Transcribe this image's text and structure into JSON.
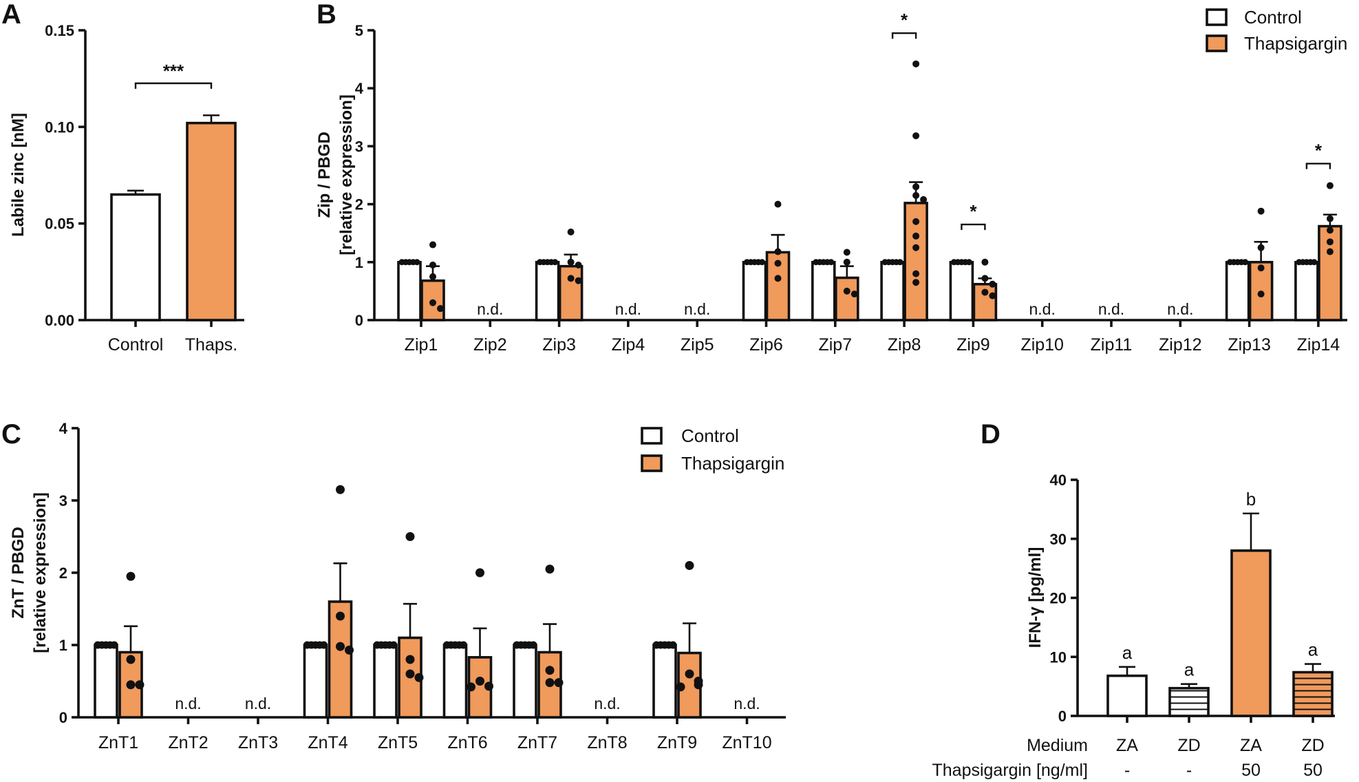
{
  "colors": {
    "control": "#ffffff",
    "thapsigargin": "#f09a5c",
    "stroke": "#111111"
  },
  "chart_data": [
    {
      "panel": "A",
      "type": "bar",
      "ylabel": "Labile zinc [nM]",
      "yticks": [
        "0.00",
        "0.05",
        "0.10",
        "0.15"
      ],
      "ylim": [
        0,
        0.15
      ],
      "categories": [
        "Control",
        "Thaps."
      ],
      "values": [
        0.065,
        0.102
      ],
      "errors": [
        0.002,
        0.004
      ],
      "fills": [
        "control",
        "thapsigargin"
      ],
      "significance": "***"
    },
    {
      "panel": "B",
      "type": "bar",
      "ylabel_line1": "Zip / PBGD",
      "ylabel_line2": "[relative expression]",
      "yticks": [
        "0",
        "1",
        "2",
        "3",
        "4",
        "5"
      ],
      "ylim": [
        0,
        5
      ],
      "legend": [
        "Control",
        "Thapsigargin"
      ],
      "nd_label": "n.d.",
      "sig_label": "*",
      "groups": [
        {
          "name": "Zip1",
          "control": 1,
          "thaps": 0.68,
          "err": 0.25,
          "points": [
            1.3,
            0.95,
            0.75,
            0.3,
            0.2
          ]
        },
        {
          "name": "Zip2",
          "nd": true
        },
        {
          "name": "Zip3",
          "control": 1,
          "thaps": 0.93,
          "err": 0.2,
          "points": [
            1.52,
            1.0,
            0.95,
            0.72,
            0.68
          ]
        },
        {
          "name": "Zip4",
          "nd": true
        },
        {
          "name": "Zip5",
          "nd": true
        },
        {
          "name": "Zip6",
          "control": 1,
          "thaps": 1.17,
          "err": 0.3,
          "points": [
            2.0,
            1.18,
            0.98,
            0.72
          ]
        },
        {
          "name": "Zip7",
          "control": 1,
          "thaps": 0.73,
          "err": 0.2,
          "points": [
            1.17,
            1.0,
            0.5,
            0.45
          ]
        },
        {
          "name": "Zip8",
          "control": 1,
          "thaps": 2.02,
          "err": 0.36,
          "points": [
            4.42,
            3.18,
            2.3,
            2.15,
            2.08,
            1.7,
            1.45,
            1.25,
            0.8,
            0.65
          ],
          "sig": true,
          "sigY": 4.95
        },
        {
          "name": "Zip9",
          "control": 1,
          "thaps": 0.62,
          "err": 0.1,
          "points": [
            1.0,
            0.72,
            0.62,
            0.48,
            0.42
          ],
          "sig": true,
          "sigY": 1.65
        },
        {
          "name": "Zip10",
          "nd": true
        },
        {
          "name": "Zip11",
          "nd": true
        },
        {
          "name": "Zip12",
          "nd": true
        },
        {
          "name": "Zip13",
          "control": 1,
          "thaps": 1.0,
          "err": 0.35,
          "points": [
            1.88,
            1.25,
            0.9,
            0.45
          ]
        },
        {
          "name": "Zip14",
          "control": 1,
          "thaps": 1.62,
          "err": 0.2,
          "points": [
            2.32,
            1.75,
            1.55,
            1.35,
            1.18
          ],
          "sig": true,
          "sigY": 2.7
        }
      ]
    },
    {
      "panel": "C",
      "type": "bar",
      "ylabel_line1": "ZnT / PBGD",
      "ylabel_line2": "[relative expression]",
      "yticks": [
        "0",
        "1",
        "2",
        "3",
        "4"
      ],
      "ylim": [
        0,
        4
      ],
      "legend": [
        "Control",
        "Thapsigargin"
      ],
      "nd_label": "n.d.",
      "groups": [
        {
          "name": "ZnT1",
          "control": 1,
          "thaps": 0.9,
          "err": 0.36,
          "points": [
            1.95,
            0.8,
            0.45,
            0.45
          ]
        },
        {
          "name": "ZnT2",
          "nd": true
        },
        {
          "name": "ZnT3",
          "nd": true
        },
        {
          "name": "ZnT4",
          "control": 1,
          "thaps": 1.6,
          "err": 0.53,
          "points": [
            3.15,
            1.4,
            0.98,
            0.93
          ]
        },
        {
          "name": "ZnT5",
          "control": 1,
          "thaps": 1.1,
          "err": 0.47,
          "points": [
            2.5,
            0.8,
            0.6,
            0.55
          ]
        },
        {
          "name": "ZnT6",
          "control": 1,
          "thaps": 0.83,
          "err": 0.4,
          "points": [
            2.0,
            0.5,
            0.43,
            0.42
          ]
        },
        {
          "name": "ZnT7",
          "control": 1,
          "thaps": 0.9,
          "err": 0.39,
          "points": [
            2.05,
            0.65,
            0.48,
            0.48
          ]
        },
        {
          "name": "ZnT8",
          "nd": true
        },
        {
          "name": "ZnT9",
          "control": 1,
          "thaps": 0.89,
          "err": 0.41,
          "points": [
            2.1,
            0.6,
            0.5,
            0.45,
            0.42
          ]
        },
        {
          "name": "ZnT10",
          "nd": true
        }
      ]
    },
    {
      "panel": "D",
      "type": "bar",
      "ylabel": "IFN-γ [pg/ml]",
      "yticks": [
        "0",
        "10",
        "20",
        "30",
        "40"
      ],
      "ylim": [
        0,
        40
      ],
      "row1_label": "Medium",
      "row2_label": "Thapsigargin [ng/ml]",
      "bars": [
        {
          "medium": "ZA",
          "thaps": "-",
          "value": 6.8,
          "err": 1.5,
          "letter": "a",
          "fill": "control",
          "hatch": false
        },
        {
          "medium": "ZD",
          "thaps": "-",
          "value": 4.7,
          "err": 0.7,
          "letter": "a",
          "fill": "control",
          "hatch": true
        },
        {
          "medium": "ZA",
          "thaps": "50",
          "value": 28.0,
          "err": 6.3,
          "letter": "b",
          "fill": "thapsigargin",
          "hatch": false
        },
        {
          "medium": "ZD",
          "thaps": "50",
          "value": 7.4,
          "err": 1.4,
          "letter": "a",
          "fill": "thapsigargin",
          "hatch": true
        }
      ]
    }
  ],
  "panel_letters": [
    "A",
    "B",
    "C",
    "D"
  ]
}
